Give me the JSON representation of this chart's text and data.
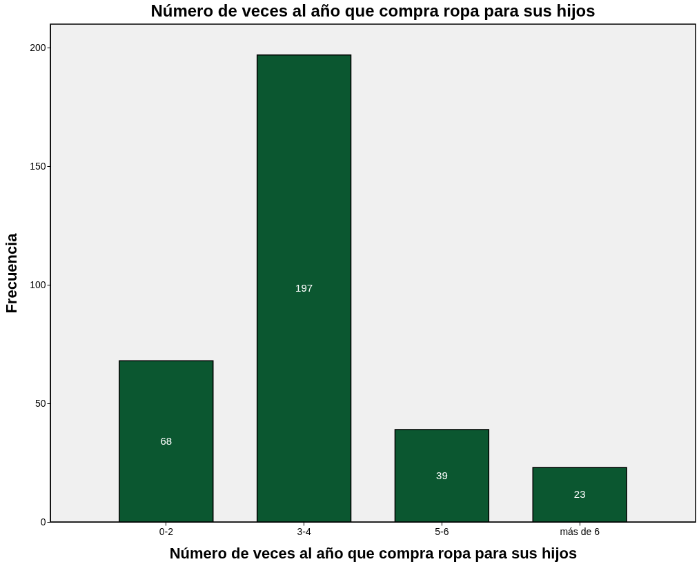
{
  "chart_data": {
    "type": "bar",
    "title": "Número de veces al año que compra ropa para sus hijos",
    "xlabel": "Número de veces al año que compra ropa para sus hijos",
    "ylabel": "Frecuencia",
    "categories": [
      "0-2",
      "3-4",
      "5-6",
      "más de 6"
    ],
    "values": [
      68,
      197,
      39,
      23
    ],
    "color": "#0b5730",
    "ylim": [
      0,
      210
    ],
    "yticks": [
      0,
      50,
      100,
      150,
      200
    ],
    "grid": false,
    "data_labels": true
  }
}
